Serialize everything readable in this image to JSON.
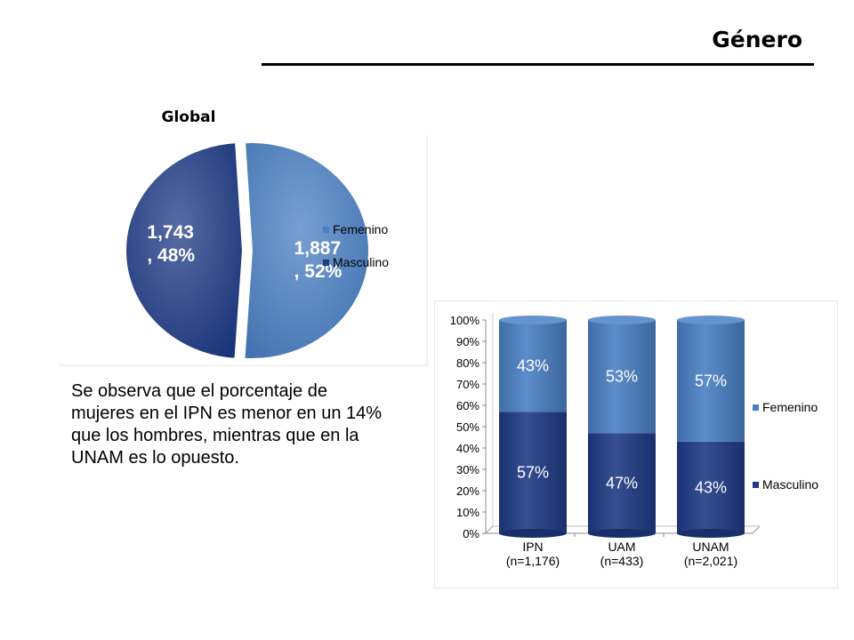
{
  "header": {
    "title": "Género"
  },
  "pie": {
    "title": "Global"
  },
  "note": {
    "text": "Se observa que el porcentaje de mujeres en el  IPN es menor en un 14% que los hombres, mientras que en la UNAM es lo opuesto."
  },
  "colors": {
    "femenino": "#4a80c4",
    "masculino": "#1f3b86"
  },
  "chart_data": [
    {
      "type": "pie",
      "title": "Global",
      "slices": [
        {
          "label": "Femenino",
          "value": 1887,
          "percent": 52,
          "data_label": "1,887\n, 52%"
        },
        {
          "label": "Masculino",
          "value": 1743,
          "percent": 48,
          "data_label": "1,743\n, 48%"
        }
      ],
      "legend": [
        "Femenino",
        "Masculino"
      ],
      "legend_position": "right"
    },
    {
      "type": "bar",
      "stacked": true,
      "percent_stacked": true,
      "categories": [
        "IPN\n(n=1,176)",
        "UAM\n(n=433)",
        "UNAM\n(n=2,021)"
      ],
      "series": [
        {
          "name": "Masculino",
          "values": [
            57,
            47,
            43
          ]
        },
        {
          "name": "Femenino",
          "values": [
            43,
            53,
            57
          ]
        }
      ],
      "y_ticks": [
        "0%",
        "10%",
        "20%",
        "30%",
        "40%",
        "50%",
        "60%",
        "70%",
        "80%",
        "90%",
        "100%"
      ],
      "ylim": [
        0,
        100
      ],
      "legend": [
        "Femenino",
        "Masculino"
      ],
      "legend_position": "right"
    }
  ]
}
